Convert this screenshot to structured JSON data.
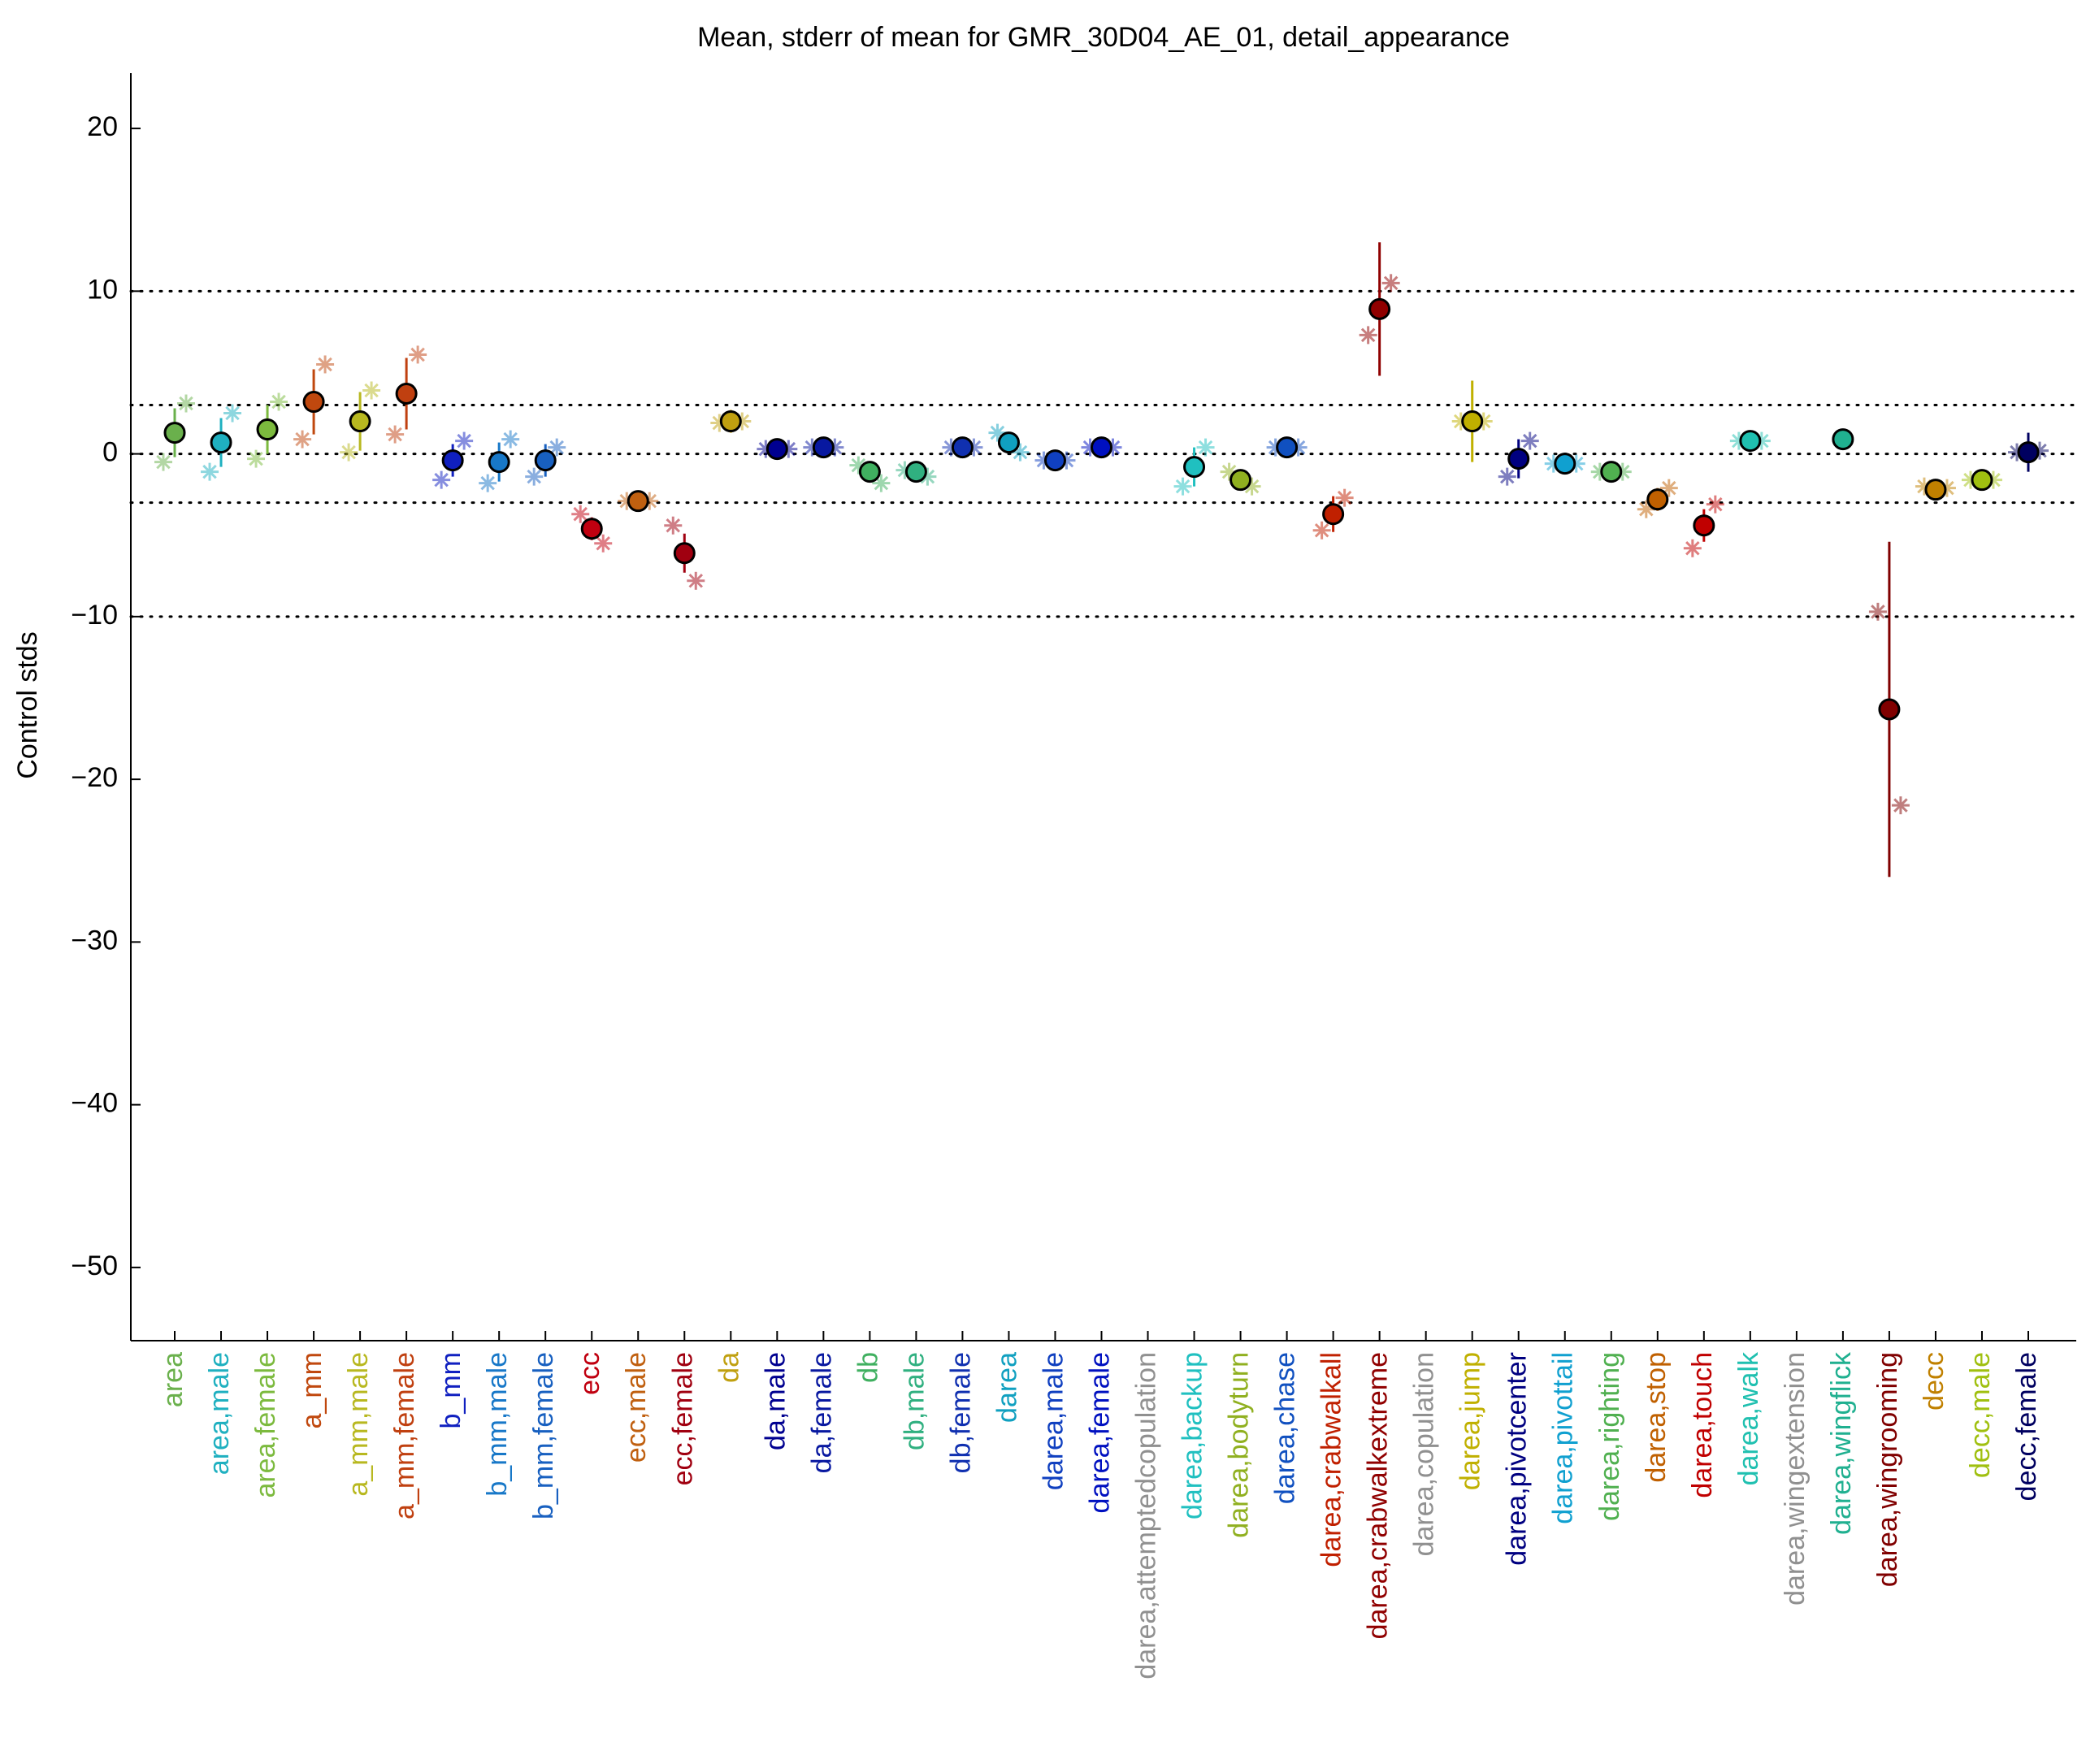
{
  "chart_data": {
    "type": "errorbar",
    "title": "Mean, stderr of mean for GMR_30D04_AE_01, detail_appearance",
    "y_label": "Control stds",
    "categories": [
      "area",
      "area,male",
      "area,female",
      "a_mm",
      "a_mm,male",
      "a_mm,female",
      "b_mm",
      "b_mm,male",
      "b_mm,female",
      "ecc",
      "ecc,male",
      "ecc,female",
      "da",
      "da,male",
      "da,female",
      "db",
      "db,male",
      "db,female",
      "darea",
      "darea,male",
      "darea,female",
      "darea,attemptedcopulation",
      "darea,backup",
      "darea,bodyturn",
      "darea,chase",
      "darea,crabwalkall",
      "darea,crabwalkextreme",
      "darea,copulation",
      "darea,jump",
      "darea,pivotcenter",
      "darea,pivottail",
      "darea,righting",
      "darea,stop",
      "darea,touch",
      "darea,walk",
      "darea,wingextension",
      "darea,wingflick",
      "darea,wingrooming",
      "decc",
      "decc,male",
      "decc,female"
    ],
    "values": [
      1.3,
      0.7,
      1.5,
      3.2,
      2.0,
      3.7,
      -0.4,
      -0.5,
      -0.4,
      -4.6,
      -2.9,
      -6.1,
      2.0,
      0.3,
      0.4,
      -1.1,
      -1.1,
      0.4,
      0.7,
      -0.4,
      0.4,
      null,
      -0.8,
      -1.6,
      0.4,
      -3.7,
      8.9,
      null,
      2.0,
      -0.3,
      -0.6,
      -1.1,
      -2.8,
      -4.4,
      0.8,
      null,
      0.9,
      -15.7,
      -2.2,
      -1.6,
      0.1
    ],
    "errors": [
      1.5,
      1.5,
      1.5,
      2.0,
      1.8,
      2.2,
      1.0,
      1.2,
      1.0,
      0.7,
      0.3,
      1.2,
      0.7,
      0.3,
      0.3,
      0.3,
      0.3,
      0.3,
      0.4,
      0.3,
      0.3,
      null,
      1.2,
      0.4,
      0.4,
      1.1,
      4.1,
      null,
      2.5,
      1.2,
      0.3,
      0.3,
      0.7,
      1.0,
      0.3,
      null,
      0.0,
      10.3,
      0.5,
      0.4,
      1.2
    ],
    "left_marker_values": [
      -0.5,
      -1.1,
      -0.3,
      0.9,
      0.1,
      1.2,
      -1.6,
      -1.8,
      -1.4,
      -3.7,
      -2.9,
      -4.4,
      1.9,
      0.3,
      0.4,
      -0.7,
      -1.0,
      0.4,
      1.3,
      -0.4,
      0.4,
      null,
      -2.0,
      -1.1,
      0.4,
      -4.7,
      7.3,
      null,
      2.0,
      -1.4,
      -0.6,
      -1.1,
      -3.4,
      -5.8,
      0.8,
      null,
      null,
      -9.7,
      -2.0,
      -1.6,
      0.1
    ],
    "right_marker_values": [
      3.1,
      2.5,
      3.2,
      5.5,
      3.9,
      6.1,
      0.8,
      0.9,
      0.4,
      -5.5,
      -2.9,
      -7.8,
      2.0,
      0.3,
      0.4,
      -1.8,
      -1.4,
      0.4,
      0.1,
      -0.4,
      0.4,
      null,
      0.4,
      -2.0,
      0.4,
      -2.7,
      10.5,
      null,
      2.0,
      0.8,
      -0.6,
      -1.1,
      -2.1,
      -3.1,
      0.8,
      null,
      null,
      -21.6,
      -2.1,
      -1.6,
      0.2
    ],
    "colors": [
      "#6ab04c",
      "#1fb0c0",
      "#7cba3e",
      "#c0480e",
      "#b8b820",
      "#c04010",
      "#1020c0",
      "#1878c8",
      "#1860c0",
      "#c00010",
      "#c06010",
      "#a00010",
      "#c0a010",
      "#000090",
      "#0818a0",
      "#40b060",
      "#30b080",
      "#1030b0",
      "#10a0c0",
      "#1040c0",
      "#0010c0",
      "#909090",
      "#20c0c0",
      "#90b020",
      "#1050c0",
      "#c02000",
      "#900000",
      "#909090",
      "#c0b000",
      "#000080",
      "#10a0d0",
      "#50b050",
      "#c06000",
      "#c00000",
      "#20c0b0",
      "#909090",
      "#20b090",
      "#800000",
      "#c08000",
      "#a0c010",
      "#000060"
    ],
    "ylim": [
      -54.5,
      23.4
    ],
    "yticks": [
      20,
      10,
      0,
      {
        "value": -10,
        "label": "−10"
      },
      {
        "value": -20,
        "label": "−20"
      },
      {
        "value": -30,
        "label": "−30"
      },
      {
        "value": -40,
        "label": "−40"
      },
      {
        "value": -50,
        "label": "−50"
      }
    ],
    "reference_lines": [
      10,
      3,
      0,
      -3,
      -10
    ]
  }
}
